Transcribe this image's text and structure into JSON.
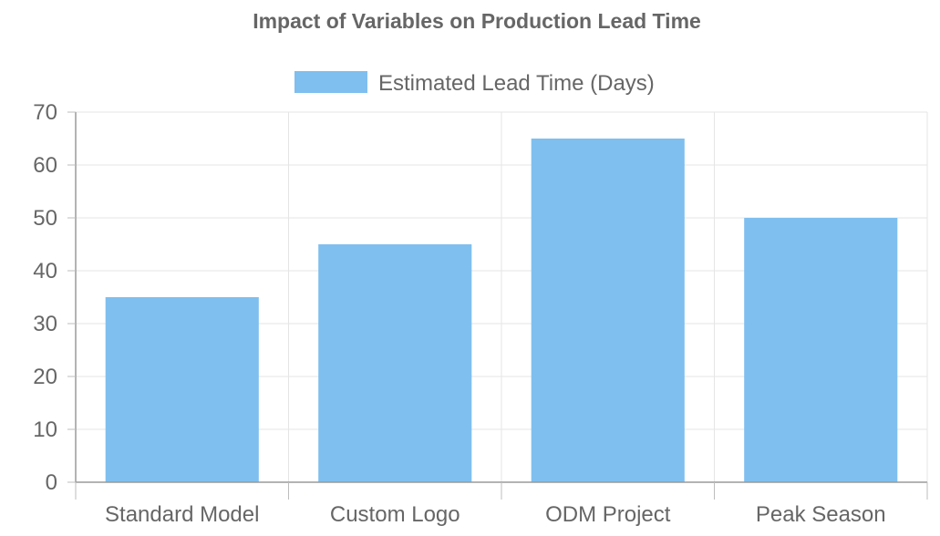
{
  "chart_data": {
    "type": "bar",
    "title": "Impact of Variables on Production Lead Time",
    "categories": [
      "Standard Model",
      "Custom Logo",
      "ODM Project",
      "Peak Season"
    ],
    "series": [
      {
        "name": "Estimated Lead Time (Days)",
        "values": [
          35,
          45,
          65,
          50
        ],
        "color": "#7fbfef"
      }
    ],
    "xlabel": "",
    "ylabel": "",
    "ylim": [
      0,
      70
    ],
    "yticks": [
      0,
      10,
      20,
      30,
      40,
      50,
      60,
      70
    ],
    "grid": true,
    "legend_position": "top-center"
  }
}
